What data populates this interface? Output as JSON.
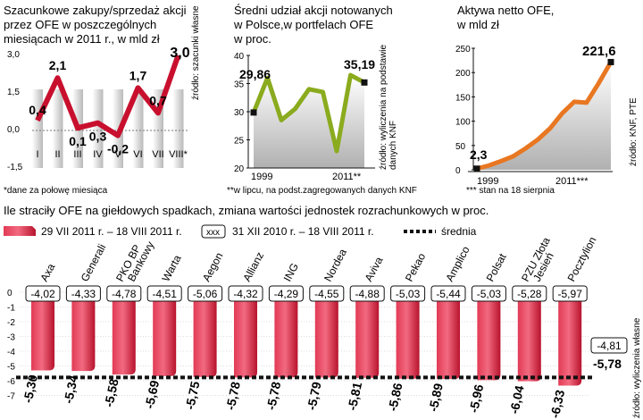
{
  "chart_data": [
    {
      "type": "line",
      "title_lines": [
        "Szacunkowe zakupy/sprzedaż akcji",
        "przez OFE w poszczególnych",
        "miesiącach w 2011 r., w mld zł"
      ],
      "categories": [
        "I",
        "II",
        "III",
        "IV",
        "V",
        "VI",
        "VII",
        "VIII*"
      ],
      "values": [
        0.4,
        2.1,
        0.1,
        0.3,
        -0.2,
        1.7,
        0.7,
        3.0
      ],
      "value_labels": [
        "0,4",
        "2,1",
        "0,1",
        "0,3",
        "-0,2",
        "1,7",
        "0,7",
        "3,0"
      ],
      "yticks": [
        "3,0",
        "1,5",
        "0,0",
        "-1,5"
      ],
      "ylim": [
        -1.5,
        3.0
      ],
      "source": "źródło: szacunki własne",
      "footnote": "*dane za połowę miesiąca",
      "color": "#c8102e"
    },
    {
      "type": "line",
      "title_lines": [
        "Średni udział akcji notowanych",
        "w Polsce,w portfelach OFE",
        "w proc."
      ],
      "start_label": "29,86",
      "end_label": "35,19",
      "x_start": "1999",
      "x_end": "2011**",
      "yticks": [
        "40",
        "35",
        "30",
        "25",
        "20"
      ],
      "ylim": [
        20,
        40
      ],
      "series": [
        29.86,
        36.0,
        28.5,
        30.5,
        34.0,
        33.5,
        23.0,
        36.5,
        35.19
      ],
      "source_lines": [
        "źródło: wyliczenia na podstawie",
        "danych KNF"
      ],
      "footnote": "**w lipcu, na podst.zagregowanych danych KNF",
      "color": "#8bab1e"
    },
    {
      "type": "line",
      "title_lines": [
        "Aktywa netto OFE,",
        "w mld zł"
      ],
      "start_label": "2,3",
      "end_label": "221,6",
      "x_start": "1999",
      "x_end": "2011***",
      "yticks": [
        "250",
        "200",
        "150",
        "100",
        "50",
        "0"
      ],
      "ylim": [
        0,
        250
      ],
      "series": [
        2.3,
        9,
        18,
        28,
        44,
        62,
        85,
        116,
        140,
        138,
        178,
        221.6
      ],
      "source": "źródło: KNF, PTE",
      "footnote": "*** stan na 18 sierpnia",
      "color": "#e87722"
    },
    {
      "type": "bar",
      "title": "Ile straciły OFE na giełdowych spadkach, zmiana wartości jednostek rozrachunkowych w proc.",
      "legend": {
        "bar": "29 VII 2011 r. – 18 VIII 2011 r.",
        "box_symbol": "xxx",
        "box": "31 XII 2010 r. – 18 VIII 2011 r.",
        "mean": "średnia"
      },
      "categories": [
        "Axa",
        "Generali",
        "PKO BP Bankowy",
        "Warta",
        "Aegon",
        "Allianz",
        "ING",
        "Nordea",
        "Aviva",
        "Pekao",
        "Amplico",
        "Polsat",
        "PZU Złota Jesień",
        "Pocztylion"
      ],
      "category_lines": [
        [
          "Axa"
        ],
        [
          "Generali"
        ],
        [
          "PKO BP",
          "Bankowy"
        ],
        [
          "Warta"
        ],
        [
          "Aegon"
        ],
        [
          "Allianz"
        ],
        [
          "ING"
        ],
        [
          "Nordea"
        ],
        [
          "Aviva"
        ],
        [
          "Pekao"
        ],
        [
          "Amplico"
        ],
        [
          "Polsat"
        ],
        [
          "PZU Złota",
          "Jesień"
        ],
        [
          "Pocztylion"
        ]
      ],
      "values": [
        -5.3,
        -5.34,
        -5.58,
        -5.69,
        -5.75,
        -5.78,
        -5.78,
        -5.79,
        -5.81,
        -5.86,
        -5.89,
        -5.96,
        -6.04,
        -6.33
      ],
      "value_labels": [
        "-5,30",
        "-5,34",
        "-5,58",
        "-5,69",
        "-5,75",
        "-5,78",
        "-5,78",
        "-5,79",
        "-5,81",
        "-5,86",
        "-5,89",
        "-5,96",
        "-6,04",
        "-6,33"
      ],
      "ytd_values": [
        -4.02,
        -4.33,
        -4.78,
        -4.51,
        -5.06,
        -4.32,
        -4.29,
        -4.55,
        -4.88,
        -5.03,
        -5.44,
        -5.03,
        -5.28,
        -5.97
      ],
      "ytd_labels": [
        "-4,02",
        "-4,33",
        "-4,78",
        "-4,51",
        "-5,06",
        "-4,32",
        "-4,29",
        "-4,55",
        "-4,88",
        "-5,03",
        "-5,44",
        "-5,03",
        "-5,28",
        "-5,97"
      ],
      "mean_ytd_label": "-4,81",
      "mean_label": "-5,78",
      "mean_value": -5.78,
      "yticks": [
        "0",
        "-1",
        "-2",
        "-3",
        "-4",
        "-5",
        "-6",
        "-7"
      ],
      "ylim": [
        -7,
        0
      ],
      "source": "źródło: wyliczenia własne",
      "color": "#d6203a"
    }
  ]
}
